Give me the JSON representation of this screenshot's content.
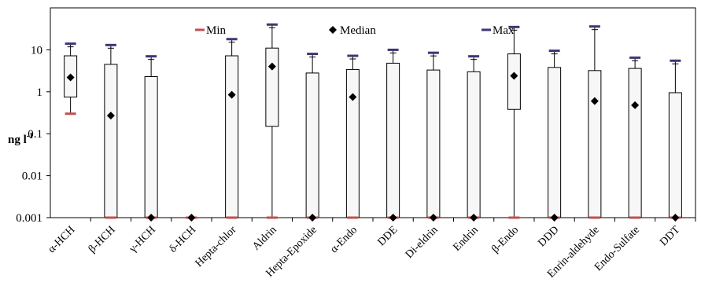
{
  "chart_data": {
    "type": "box",
    "title": "",
    "xlabel": "",
    "ylabel": "ng l",
    "ylabel_superscript": "-1",
    "y_scale": "log",
    "ylim": [
      0.001,
      100
    ],
    "y_ticks": [
      {
        "value": 0.001,
        "label": "0.001"
      },
      {
        "value": 0.01,
        "label": "0.01"
      },
      {
        "value": 0.1,
        "label": "0.1"
      },
      {
        "value": 1,
        "label": "1"
      },
      {
        "value": 10,
        "label": "10"
      }
    ],
    "grid": false,
    "legend": {
      "placement": "top",
      "entries": [
        {
          "key": "min",
          "label": "Min",
          "marker": "dash",
          "color": "#c0504d"
        },
        {
          "key": "median",
          "label": "Median",
          "marker": "diamond",
          "color": "#000000"
        },
        {
          "key": "max",
          "label": "Max",
          "marker": "dash",
          "color": "#3f3673"
        }
      ]
    },
    "colors": {
      "min": "#c0504d",
      "max": "#3f3673",
      "median": "#000000",
      "box_fill": "#f7f7f7",
      "box_stroke": "#000000"
    },
    "categories": [
      "α-HCH",
      "β-HCH",
      "γ-HCH",
      "δ-HCH",
      "Hepta-chlor",
      "Aldrin",
      "Hepta-Epoxide",
      "α-Endo",
      "DDE",
      "Di-eldrin",
      "Endrin",
      "β-Endo",
      "DDD",
      "Enrin-aldehyde",
      "Endo-Sulfate",
      "DDT"
    ],
    "series": [
      {
        "category": "α-HCH",
        "min": 0.3,
        "q1": 0.75,
        "median": 2.2,
        "q3": 7.2,
        "max": 14
      },
      {
        "category": "β-HCH",
        "min": 0.001,
        "q1": 0.001,
        "median": 0.27,
        "q3": 4.5,
        "max": 13
      },
      {
        "category": "γ-HCH",
        "min": 0.001,
        "q1": 0.001,
        "median": 0.001,
        "q3": 2.3,
        "max": 7
      },
      {
        "category": "δ-HCH",
        "min": 0.001,
        "q1": 0.001,
        "median": 0.001,
        "q3": 0.001,
        "max": 0.001
      },
      {
        "category": "Hepta-chlor",
        "min": 0.001,
        "q1": 0.001,
        "median": 0.85,
        "q3": 7.2,
        "max": 18
      },
      {
        "category": "Aldrin",
        "min": 0.001,
        "q1": 0.15,
        "median": 4,
        "q3": 11,
        "max": 40
      },
      {
        "category": "Hepta-Epoxide",
        "min": 0.001,
        "q1": 0.001,
        "median": 0.001,
        "q3": 2.8,
        "max": 8
      },
      {
        "category": "α-Endo",
        "min": 0.001,
        "q1": 0.001,
        "median": 0.75,
        "q3": 3.4,
        "max": 7.2
      },
      {
        "category": "DDE",
        "min": 0.001,
        "q1": 0.001,
        "median": 0.001,
        "q3": 4.8,
        "max": 10
      },
      {
        "category": "Di-eldrin",
        "min": 0.001,
        "q1": 0.001,
        "median": 0.001,
        "q3": 3.3,
        "max": 8.5
      },
      {
        "category": "Endrin",
        "min": 0.001,
        "q1": 0.001,
        "median": 0.001,
        "q3": 3.0,
        "max": 7
      },
      {
        "category": "β-Endo",
        "min": 0.001,
        "q1": 0.38,
        "median": 2.4,
        "q3": 8,
        "max": 35
      },
      {
        "category": "DDD",
        "min": 0.001,
        "q1": 0.001,
        "median": 0.001,
        "q3": 3.8,
        "max": 9.5
      },
      {
        "category": "Enrin-aldehyde",
        "min": 0.001,
        "q1": 0.001,
        "median": 0.6,
        "q3": 3.2,
        "max": 36
      },
      {
        "category": "Endo-Sulfate",
        "min": 0.001,
        "q1": 0.001,
        "median": 0.48,
        "q3": 3.6,
        "max": 6.5
      },
      {
        "category": "DDT",
        "min": 0.001,
        "q1": 0.001,
        "median": 0.001,
        "q3": 0.95,
        "max": 5.5
      }
    ]
  }
}
